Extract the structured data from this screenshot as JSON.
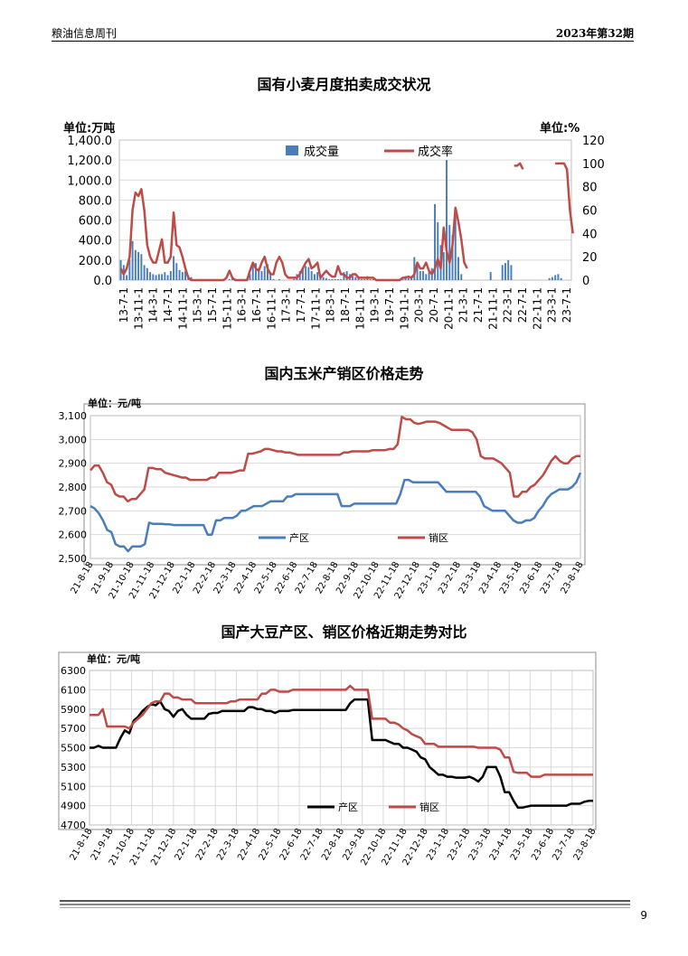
{
  "header": {
    "left": "粮油信息周刊",
    "right": "2023年第32期"
  },
  "page_number": "9",
  "chart_data": [
    {
      "type": "bar+line",
      "title": "国有小麦月度拍卖成交状况",
      "ylabel_left": "单位:万吨",
      "ylabel_right": "单位:%",
      "ylim_left": [
        0,
        1400
      ],
      "ylim_right": [
        0,
        120
      ],
      "yticks_left": [
        "0.0",
        "200.0",
        "400.0",
        "600.0",
        "800.0",
        "1,000.0",
        "1,200.0",
        "1,400.0"
      ],
      "yticks_right": [
        "0",
        "20",
        "40",
        "60",
        "80",
        "100",
        "120"
      ],
      "xticks": [
        "13-7-1",
        "13-11-1",
        "14-3-1",
        "14-7-1",
        "14-11-1",
        "15-3-1",
        "15-7-1",
        "15-11-1",
        "16-3-1",
        "16-7-1",
        "16-11-1",
        "17-3-1",
        "17-7-1",
        "17-11-1",
        "18-3-1",
        "18-7-1",
        "18-11-1",
        "19-3-1",
        "19-7-1",
        "19-11-1",
        "20-3-1",
        "20-7-1",
        "20-11-1",
        "21-3-1",
        "21-7-1",
        "21-11-1",
        "22-3-1",
        "22-7-1",
        "22-11-1",
        "23-3-1",
        "23-7-1"
      ],
      "legend": [
        "成交量",
        "成交率"
      ],
      "series_volume": [
        200,
        150,
        50,
        200,
        390,
        300,
        280,
        260,
        150,
        120,
        80,
        60,
        50,
        60,
        60,
        80,
        50,
        90,
        240,
        170,
        100,
        80,
        90,
        40,
        30,
        0,
        0,
        0,
        0,
        0,
        0,
        0,
        0,
        0,
        0,
        0,
        0,
        10,
        20,
        0,
        0,
        0,
        0,
        0,
        60,
        150,
        170,
        120,
        90,
        140,
        160,
        80,
        10,
        0,
        10,
        0,
        0,
        0,
        0,
        10,
        60,
        90,
        120,
        140,
        130,
        90,
        60,
        80,
        40,
        30,
        20,
        10,
        10,
        10,
        10,
        10,
        80,
        90,
        60,
        40,
        30,
        20,
        10,
        10,
        40,
        10,
        10,
        10,
        0,
        0,
        0,
        0,
        0,
        0,
        0,
        5,
        10,
        40,
        20,
        40,
        230,
        140,
        90,
        90,
        60,
        80,
        120,
        760,
        580,
        350,
        280,
        1200,
        550,
        450,
        700,
        230,
        60,
        0,
        0,
        0,
        0,
        0,
        0,
        0,
        0,
        0,
        80,
        0,
        0,
        0,
        150,
        170,
        200,
        150,
        0,
        0,
        0,
        0,
        0,
        0,
        0,
        0,
        0,
        0,
        0,
        0,
        20,
        30,
        50,
        60,
        20,
        0,
        0,
        0
      ],
      "series_rate": [
        10,
        5,
        10,
        20,
        60,
        75,
        72,
        78,
        60,
        30,
        20,
        15,
        15,
        25,
        35,
        15,
        15,
        20,
        58,
        30,
        28,
        20,
        10,
        2,
        0,
        0,
        0,
        0,
        0,
        0,
        0,
        0,
        0,
        0,
        0,
        0,
        2,
        8,
        2,
        0,
        0,
        0,
        0,
        0,
        8,
        15,
        10,
        8,
        15,
        20,
        10,
        5,
        5,
        15,
        20,
        15,
        5,
        2,
        2,
        2,
        2,
        5,
        10,
        15,
        18,
        10,
        12,
        15,
        2,
        5,
        8,
        5,
        3,
        3,
        12,
        5,
        5,
        2,
        2,
        5,
        5,
        2,
        2,
        2,
        2,
        2,
        2,
        0,
        0,
        0,
        0,
        0,
        0,
        0,
        0,
        0,
        2,
        2,
        3,
        2,
        5,
        15,
        10,
        10,
        15,
        8,
        5,
        10,
        18,
        10,
        45,
        25,
        15,
        30,
        62,
        50,
        35,
        15,
        10,
        null,
        null,
        null,
        null,
        null,
        null,
        null,
        null,
        null,
        null,
        null,
        null,
        null,
        null,
        null,
        98,
        98,
        100,
        95,
        null,
        null,
        null,
        null,
        null,
        null,
        null,
        null,
        null,
        null,
        100,
        100,
        100,
        100,
        95,
        60,
        40,
        null,
        null,
        null,
        null
      ]
    },
    {
      "type": "line",
      "title": "国内玉米产销区价格走势",
      "ylabel": "单位：元/吨",
      "ylim": [
        2500,
        3100
      ],
      "yticks": [
        "2,500",
        "2,600",
        "2,700",
        "2,800",
        "2,900",
        "3,000",
        "3,100"
      ],
      "xticks": [
        "21-8-18",
        "21-9-18",
        "21-10-18",
        "21-11-18",
        "21-12-18",
        "22-1-18",
        "22-2-18",
        "22-3-18",
        "22-4-18",
        "22-5-18",
        "22-6-18",
        "22-7-18",
        "22-8-18",
        "22-9-18",
        "22-10-18",
        "22-11-18",
        "22-12-18",
        "23-1-18",
        "23-2-18",
        "23-3-18",
        "23-4-18",
        "23-5-18",
        "23-6-18",
        "23-7-18",
        "23-8-18"
      ],
      "legend": [
        "产区",
        "销区"
      ],
      "series": [
        {
          "name": "产区",
          "color": "#4a7ebb",
          "values": [
            2720,
            2710,
            2690,
            2660,
            2620,
            2610,
            2560,
            2550,
            2550,
            2530,
            2550,
            2550,
            2550,
            2560,
            2650,
            2645,
            2645,
            2645,
            2643,
            2643,
            2640,
            2640,
            2640,
            2640,
            2640,
            2640,
            2640,
            2640,
            2600,
            2600,
            2660,
            2660,
            2670,
            2670,
            2670,
            2680,
            2700,
            2700,
            2710,
            2720,
            2720,
            2720,
            2730,
            2740,
            2740,
            2740,
            2740,
            2760,
            2760,
            2770,
            2770,
            2770,
            2770,
            2770,
            2770,
            2770,
            2770,
            2770,
            2770,
            2770,
            2720,
            2720,
            2720,
            2730,
            2730,
            2730,
            2730,
            2730,
            2730,
            2730,
            2730,
            2730,
            2730,
            2730,
            2770,
            2830,
            2830,
            2820,
            2820,
            2820,
            2820,
            2820,
            2820,
            2820,
            2800,
            2780,
            2780,
            2780,
            2780,
            2780,
            2780,
            2780,
            2780,
            2760,
            2720,
            2710,
            2700,
            2700,
            2700,
            2700,
            2680,
            2660,
            2650,
            2650,
            2660,
            2660,
            2670,
            2700,
            2720,
            2750,
            2770,
            2780,
            2790,
            2790,
            2790,
            2800,
            2820,
            2860
          ]
        },
        {
          "name": "销区",
          "color": "#be4b48",
          "values": [
            2870,
            2890,
            2890,
            2860,
            2820,
            2810,
            2770,
            2760,
            2760,
            2740,
            2750,
            2750,
            2770,
            2790,
            2880,
            2880,
            2875,
            2875,
            2860,
            2855,
            2850,
            2845,
            2840,
            2840,
            2830,
            2830,
            2830,
            2830,
            2830,
            2840,
            2840,
            2860,
            2860,
            2860,
            2860,
            2865,
            2870,
            2870,
            2940,
            2940,
            2945,
            2950,
            2960,
            2960,
            2955,
            2950,
            2950,
            2945,
            2945,
            2940,
            2935,
            2935,
            2935,
            2935,
            2935,
            2935,
            2935,
            2935,
            2935,
            2935,
            2935,
            2945,
            2945,
            2950,
            2950,
            2950,
            2950,
            2950,
            2955,
            2955,
            2955,
            2955,
            2960,
            2960,
            2980,
            3095,
            3085,
            3085,
            3070,
            3065,
            3070,
            3075,
            3075,
            3075,
            3070,
            3060,
            3050,
            3040,
            3040,
            3040,
            3040,
            3040,
            3030,
            3000,
            2930,
            2920,
            2920,
            2920,
            2910,
            2900,
            2880,
            2860,
            2760,
            2760,
            2780,
            2780,
            2800,
            2810,
            2830,
            2850,
            2880,
            2910,
            2930,
            2910,
            2900,
            2900,
            2920,
            2930,
            2930
          ]
        }
      ]
    },
    {
      "type": "line",
      "title": "国产大豆产区、销区价格近期走势对比",
      "ylabel": "单位：元/吨",
      "ylim": [
        4700,
        6300
      ],
      "yticks": [
        "4700",
        "4900",
        "5100",
        "5300",
        "5500",
        "5700",
        "5900",
        "6100",
        "6300"
      ],
      "xticks": [
        "21-8-18",
        "21-9-18",
        "21-10-18",
        "21-11-18",
        "21-12-18",
        "22-1-18",
        "22-2-18",
        "22-3-18",
        "22-4-18",
        "22-5-18",
        "22-6-18",
        "22-7-18",
        "22-8-18",
        "22-9-18",
        "22-10-18",
        "22-11-18",
        "22-12-18",
        "23-1-18",
        "23-2-18",
        "23-3-18",
        "23-4-18",
        "23-5-18",
        "23-6-18",
        "23-7-18",
        "23-8-18"
      ],
      "legend": [
        "产区",
        "销区"
      ],
      "series": [
        {
          "name": "产区",
          "color": "#000000",
          "values": [
            5500,
            5500,
            5520,
            5500,
            5500,
            5500,
            5500,
            5600,
            5680,
            5650,
            5780,
            5820,
            5880,
            5920,
            5950,
            5940,
            5980,
            5900,
            5880,
            5820,
            5880,
            5900,
            5840,
            5800,
            5800,
            5800,
            5800,
            5850,
            5860,
            5860,
            5880,
            5880,
            5880,
            5880,
            5880,
            5880,
            5920,
            5920,
            5900,
            5900,
            5880,
            5880,
            5860,
            5880,
            5880,
            5880,
            5890,
            5890,
            5890,
            5890,
            5890,
            5890,
            5890,
            5890,
            5890,
            5890,
            5890,
            5890,
            5890,
            5960,
            6000,
            6000,
            6000,
            6000,
            5580,
            5580,
            5580,
            5580,
            5560,
            5540,
            5540,
            5500,
            5500,
            5480,
            5460,
            5400,
            5380,
            5300,
            5260,
            5220,
            5220,
            5200,
            5200,
            5190,
            5190,
            5190,
            5200,
            5180,
            5150,
            5200,
            5300,
            5300,
            5300,
            5200,
            5040,
            5040,
            4950,
            4880,
            4880,
            4890,
            4900,
            4900,
            4900,
            4900,
            4900,
            4900,
            4900,
            4900,
            4900,
            4920,
            4920,
            4920,
            4940,
            4950,
            4950
          ]
        },
        {
          "name": "销区",
          "color": "#be4b48",
          "values": [
            5840,
            5840,
            5840,
            5900,
            5720,
            5720,
            5720,
            5720,
            5720,
            5700,
            5760,
            5800,
            5840,
            5900,
            5960,
            5980,
            5980,
            6060,
            6060,
            6020,
            6020,
            6000,
            6000,
            6000,
            5960,
            5960,
            5960,
            5960,
            5960,
            5960,
            5960,
            5960,
            5980,
            5980,
            6000,
            6000,
            6000,
            6000,
            6000,
            6060,
            6060,
            6100,
            6100,
            6080,
            6080,
            6080,
            6100,
            6100,
            6100,
            6100,
            6100,
            6100,
            6100,
            6100,
            6100,
            6100,
            6100,
            6100,
            6100,
            6140,
            6100,
            6100,
            6100,
            6100,
            5800,
            5800,
            5800,
            5800,
            5760,
            5760,
            5740,
            5700,
            5680,
            5640,
            5620,
            5600,
            5540,
            5540,
            5540,
            5510,
            5510,
            5510,
            5510,
            5510,
            5510,
            5510,
            5510,
            5510,
            5500,
            5500,
            5500,
            5500,
            5500,
            5480,
            5400,
            5400,
            5250,
            5240,
            5240,
            5240,
            5200,
            5200,
            5200,
            5220,
            5220,
            5220,
            5220,
            5220,
            5220,
            5220,
            5220,
            5220,
            5220,
            5220,
            5220
          ]
        }
      ]
    }
  ]
}
